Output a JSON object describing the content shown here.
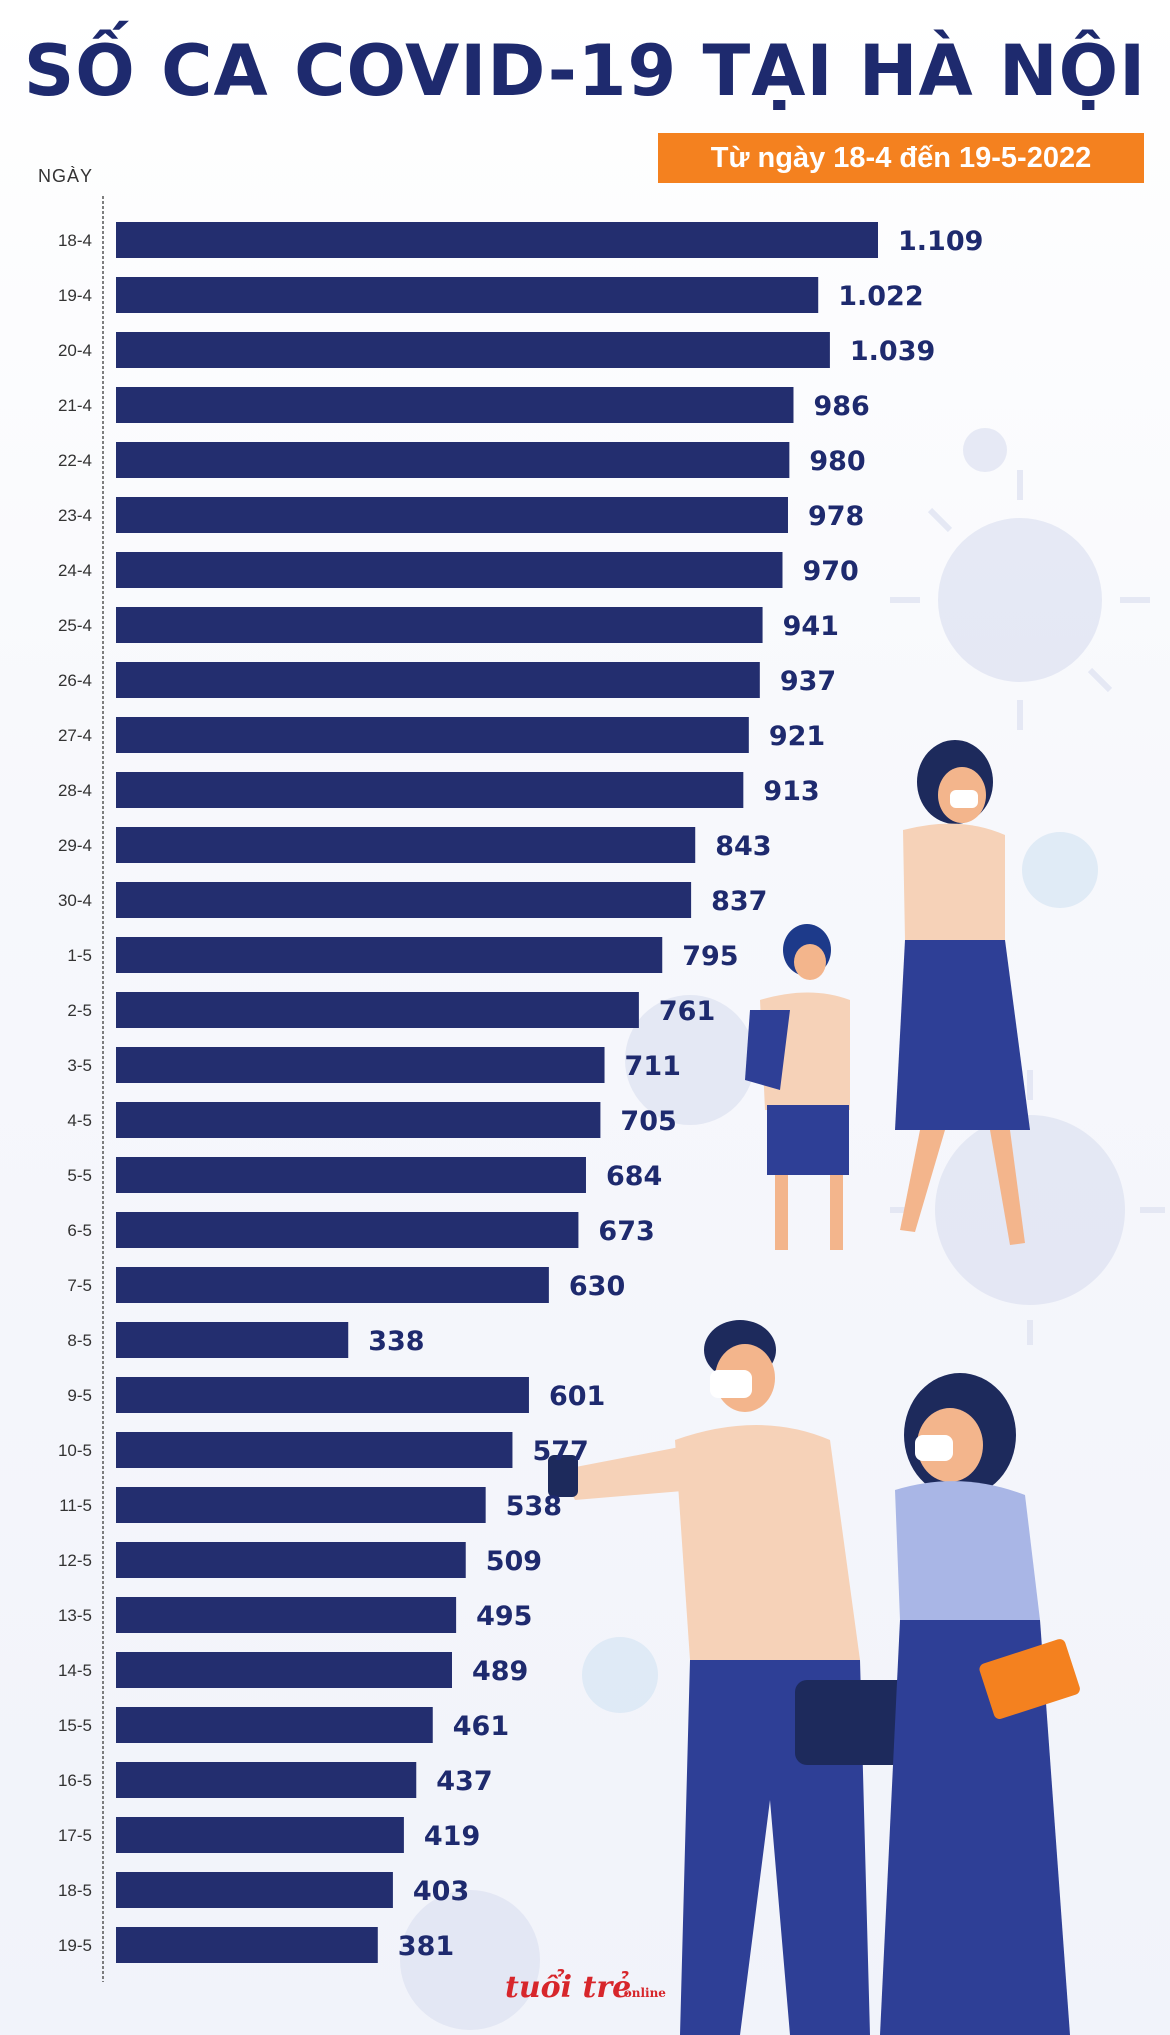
{
  "header": {
    "title": "SỐ CA COVID-19 TẠI HÀ NỘI",
    "date_range": "Từ ngày 18-4 đến 19-5-2022"
  },
  "source": {
    "logo_text": "tuổi trẻ",
    "logo_sub": "online"
  },
  "chart_data": {
    "type": "bar",
    "orientation": "horizontal",
    "title": "SỐ CA COVID-19 TẠI HÀ NỘI",
    "subtitle": "Từ ngày 18-4 đến 19-5-2022",
    "ylabel": "NGÀY",
    "xlabel": "",
    "categories": [
      "18-4",
      "19-4",
      "20-4",
      "21-4",
      "22-4",
      "23-4",
      "24-4",
      "25-4",
      "26-4",
      "27-4",
      "28-4",
      "29-4",
      "30-4",
      "1-5",
      "2-5",
      "3-5",
      "4-5",
      "5-5",
      "6-5",
      "7-5",
      "8-5",
      "9-5",
      "10-5",
      "11-5",
      "12-5",
      "13-5",
      "14-5",
      "15-5",
      "16-5",
      "17-5",
      "18-5",
      "19-5"
    ],
    "values": [
      1109,
      1022,
      1039,
      986,
      980,
      978,
      970,
      941,
      937,
      921,
      913,
      843,
      837,
      795,
      761,
      711,
      705,
      684,
      673,
      630,
      338,
      601,
      577,
      538,
      509,
      495,
      489,
      461,
      437,
      419,
      403,
      381
    ],
    "value_labels": [
      "1.109",
      "1.022",
      "1.039",
      "986",
      "980",
      "978",
      "970",
      "941",
      "937",
      "921",
      "913",
      "843",
      "837",
      "795",
      "761",
      "711",
      "705",
      "684",
      "673",
      "630",
      "338",
      "601",
      "577",
      "538",
      "509",
      "495",
      "489",
      "461",
      "437",
      "419",
      "403",
      "381"
    ],
    "bar_color": "#232e6f",
    "label_color": "#1e2a6e",
    "accent_color": "#f4811f"
  }
}
